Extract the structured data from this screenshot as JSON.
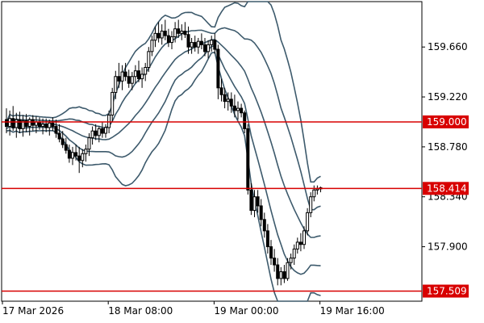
{
  "chart_data": {
    "type": "candlestick",
    "y_ticks": [
      159.66,
      159.22,
      158.78,
      158.34,
      157.9
    ],
    "y_tick_labels": [
      "159.660",
      "159.220",
      "158.780",
      "158.340",
      "157.900"
    ],
    "x_tick_labels": [
      "17 Mar 2026",
      "18 Mar 08:00",
      "19 Mar 00:00",
      "19 Mar 16:00"
    ],
    "x_tick_bars": [
      0,
      32,
      64,
      96
    ],
    "ylim": [
      157.42,
      160.06
    ],
    "horizontal_lines": [
      {
        "value": 159.0,
        "label": "159.000"
      },
      {
        "value": 158.414,
        "label": "158.414"
      },
      {
        "value": 157.509,
        "label": "157.509"
      }
    ],
    "colors": {
      "line": "#d80000",
      "band": "#3d5a6c",
      "candle": "#000000",
      "grid_frame": "#000000"
    },
    "candles": [
      [
        159.02,
        159.12,
        158.9,
        158.96
      ],
      [
        158.96,
        159.1,
        158.88,
        159.03
      ],
      [
        159.03,
        159.14,
        158.92,
        158.95
      ],
      [
        158.95,
        159.08,
        158.86,
        159.02
      ],
      [
        159.02,
        159.09,
        158.9,
        158.94
      ],
      [
        158.94,
        159.06,
        158.87,
        159.01
      ],
      [
        159.01,
        159.07,
        158.91,
        158.96
      ],
      [
        158.96,
        159.04,
        158.88,
        159.02
      ],
      [
        159.02,
        159.06,
        158.92,
        158.97
      ],
      [
        158.97,
        159.05,
        158.9,
        159.0
      ],
      [
        159.0,
        159.04,
        158.93,
        158.96
      ],
      [
        158.96,
        159.03,
        158.89,
        158.98
      ],
      [
        158.98,
        159.03,
        158.91,
        158.95
      ],
      [
        158.95,
        159.02,
        158.88,
        158.99
      ],
      [
        158.99,
        159.04,
        158.92,
        158.96
      ],
      [
        158.96,
        159.02,
        158.86,
        158.9
      ],
      [
        158.9,
        158.98,
        158.82,
        158.85
      ],
      [
        158.85,
        158.92,
        158.77,
        158.8
      ],
      [
        158.8,
        158.86,
        158.72,
        158.75
      ],
      [
        158.75,
        158.8,
        158.64,
        158.68
      ],
      [
        158.68,
        158.78,
        158.62,
        158.73
      ],
      [
        158.73,
        158.8,
        158.66,
        158.7
      ],
      [
        158.7,
        158.78,
        158.55,
        158.66
      ],
      [
        158.66,
        158.76,
        158.6,
        158.72
      ],
      [
        158.72,
        158.8,
        158.65,
        158.76
      ],
      [
        158.76,
        158.9,
        158.7,
        158.86
      ],
      [
        158.86,
        158.96,
        158.8,
        158.92
      ],
      [
        158.92,
        158.98,
        158.84,
        158.88
      ],
      [
        158.88,
        158.96,
        158.82,
        158.94
      ],
      [
        158.94,
        159.0,
        158.86,
        158.9
      ],
      [
        158.9,
        158.98,
        158.86,
        158.95
      ],
      [
        158.95,
        159.1,
        158.9,
        159.06
      ],
      [
        159.06,
        159.3,
        159.0,
        159.26
      ],
      [
        159.26,
        159.45,
        159.2,
        159.4
      ],
      [
        159.4,
        159.52,
        159.3,
        159.36
      ],
      [
        159.36,
        159.5,
        159.28,
        159.44
      ],
      [
        159.44,
        159.52,
        159.36,
        159.4
      ],
      [
        159.4,
        159.46,
        159.3,
        159.34
      ],
      [
        159.34,
        159.44,
        159.28,
        159.4
      ],
      [
        159.4,
        159.5,
        159.34,
        159.45
      ],
      [
        159.45,
        159.54,
        159.35,
        159.38
      ],
      [
        159.38,
        159.48,
        159.3,
        159.42
      ],
      [
        159.42,
        159.52,
        159.36,
        159.48
      ],
      [
        159.48,
        159.66,
        159.44,
        159.62
      ],
      [
        159.62,
        159.76,
        159.58,
        159.72
      ],
      [
        159.72,
        159.84,
        159.66,
        159.78
      ],
      [
        159.78,
        159.88,
        159.7,
        159.74
      ],
      [
        159.74,
        159.86,
        159.68,
        159.8
      ],
      [
        159.8,
        159.9,
        159.72,
        159.76
      ],
      [
        159.76,
        159.82,
        159.66,
        159.7
      ],
      [
        159.7,
        159.8,
        159.64,
        159.75
      ],
      [
        159.75,
        159.88,
        159.7,
        159.82
      ],
      [
        159.82,
        159.9,
        159.74,
        159.78
      ],
      [
        159.78,
        159.86,
        159.72,
        159.8
      ],
      [
        159.8,
        159.88,
        159.74,
        159.77
      ],
      [
        159.77,
        159.84,
        159.6,
        159.66
      ],
      [
        159.66,
        159.74,
        159.6,
        159.7
      ],
      [
        159.7,
        159.76,
        159.62,
        159.66
      ],
      [
        159.66,
        159.74,
        159.6,
        159.71
      ],
      [
        159.71,
        159.78,
        159.64,
        159.68
      ],
      [
        159.68,
        159.74,
        159.58,
        159.62
      ],
      [
        159.62,
        159.72,
        159.56,
        159.68
      ],
      [
        159.68,
        159.76,
        159.62,
        159.72
      ],
      [
        159.72,
        159.78,
        159.6,
        159.64
      ],
      [
        159.64,
        159.68,
        159.2,
        159.3
      ],
      [
        159.3,
        159.38,
        159.18,
        159.24
      ],
      [
        159.24,
        159.3,
        159.12,
        159.18
      ],
      [
        159.18,
        159.26,
        159.1,
        159.2
      ],
      [
        159.2,
        159.26,
        159.08,
        159.14
      ],
      [
        159.14,
        159.24,
        159.04,
        159.1
      ],
      [
        159.1,
        159.18,
        159.02,
        159.12
      ],
      [
        159.12,
        159.16,
        159.04,
        159.08
      ],
      [
        159.08,
        159.1,
        158.9,
        158.94
      ],
      [
        158.94,
        158.98,
        158.36,
        158.4
      ],
      [
        158.4,
        158.46,
        158.18,
        158.22
      ],
      [
        158.22,
        158.4,
        158.16,
        158.34
      ],
      [
        158.34,
        158.4,
        158.2,
        158.26
      ],
      [
        158.26,
        158.32,
        158.08,
        158.14
      ],
      [
        158.14,
        158.2,
        157.98,
        158.04
      ],
      [
        158.04,
        158.1,
        157.84,
        157.9
      ],
      [
        157.9,
        157.96,
        157.74,
        157.8
      ],
      [
        157.8,
        157.88,
        157.68,
        157.74
      ],
      [
        157.74,
        157.8,
        157.56,
        157.62
      ],
      [
        157.62,
        157.72,
        157.56,
        157.68
      ],
      [
        157.68,
        157.74,
        157.58,
        157.62
      ],
      [
        157.62,
        157.8,
        157.6,
        157.76
      ],
      [
        157.76,
        157.84,
        157.7,
        157.8
      ],
      [
        157.8,
        157.92,
        157.74,
        157.88
      ],
      [
        157.88,
        157.98,
        157.84,
        157.94
      ],
      [
        157.94,
        158.02,
        157.86,
        157.92
      ],
      [
        157.92,
        158.08,
        157.88,
        158.04
      ],
      [
        158.04,
        158.24,
        158.0,
        158.2
      ],
      [
        158.2,
        158.38,
        158.16,
        158.34
      ],
      [
        158.34,
        158.44,
        158.3,
        158.4
      ],
      [
        158.4,
        158.44,
        158.36,
        158.41
      ],
      [
        158.41,
        158.43,
        158.38,
        158.42
      ]
    ]
  }
}
